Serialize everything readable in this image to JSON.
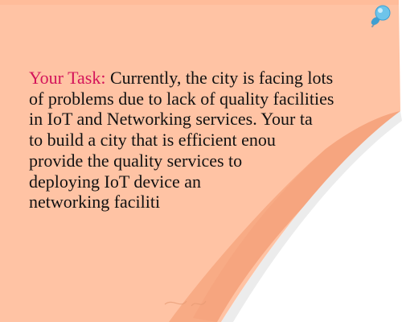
{
  "note": {
    "label": "Your Task:",
    "lines": [
      "Currently, the city is facing lots",
      "of problems due to lack of quality facilities",
      "in IoT and Networking services. Your ta",
      "to build a city that is efficient enou",
      "provide the quality services to",
      "deploying IoT device an",
      "networking faciliti"
    ]
  },
  "colors": {
    "paper": "#ffc3a4",
    "curl": "#f8ab85",
    "label": "#d4145a",
    "text": "#111111",
    "pin": "#6ec4ea"
  },
  "icons": {
    "pin": "push-pin-icon"
  }
}
